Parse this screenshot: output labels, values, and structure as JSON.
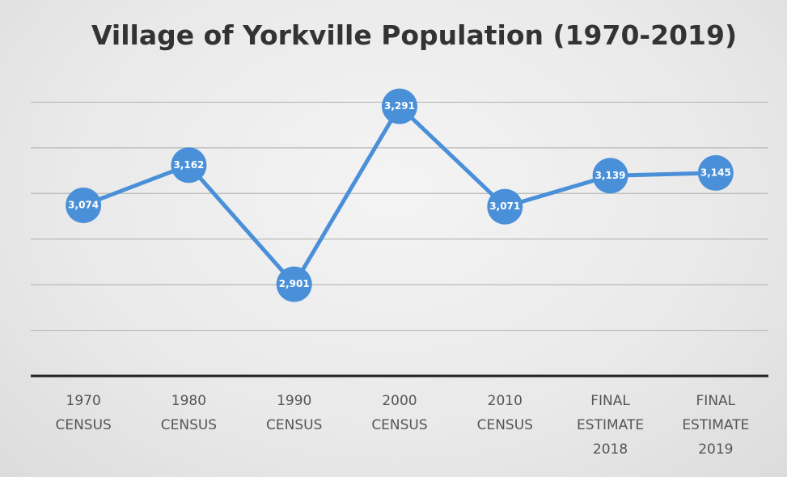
{
  "chart_data": {
    "type": "line",
    "title": "Village of Yorkville Population (1970-2019)",
    "categories": [
      "1970 CENSUS",
      "1980 CENSUS",
      "1990 CENSUS",
      "2000 CENSUS",
      "2010 CENSUS",
      "FINAL ESTIMATE 2018",
      "FINAL ESTIMATE 2019"
    ],
    "series": [
      {
        "color": "#4a90d9",
        "values": [
          3074,
          3162,
          2901,
          3291,
          3071,
          3139,
          3145
        ],
        "value_labels": [
          "3,074",
          "3,162",
          "2,901",
          "3,291",
          "3,071",
          "3,139",
          "3,145"
        ]
      }
    ],
    "ylim": [
      2700,
      3400
    ],
    "yticks": [
      2700,
      2800,
      2900,
      3000,
      3100,
      3200,
      3300
    ],
    "grid": true
  }
}
